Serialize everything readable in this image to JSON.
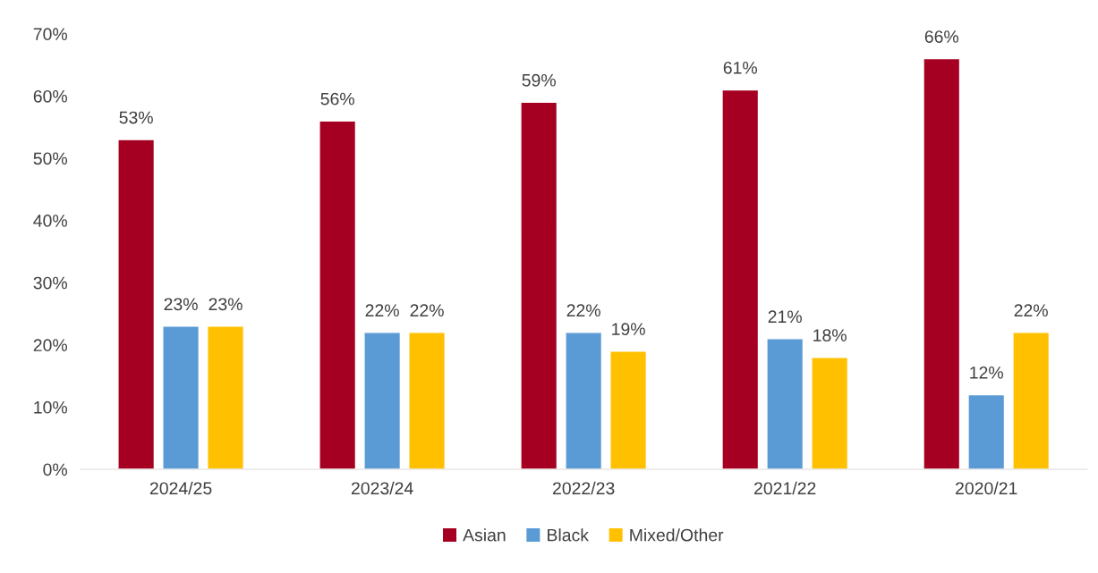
{
  "chart_data": {
    "type": "bar",
    "categories": [
      "2024/25",
      "2023/24",
      "2022/23",
      "2021/22",
      "2020/21"
    ],
    "series": [
      {
        "name": "Asian",
        "color": "#a50021",
        "values": [
          53,
          56,
          59,
          61,
          66
        ],
        "value_labels": [
          "53%",
          "56%",
          "59%",
          "61%",
          "66%"
        ]
      },
      {
        "name": "Black",
        "color": "#5b9bd5",
        "values": [
          23,
          22,
          22,
          21,
          12
        ],
        "value_labels": [
          "23%",
          "22%",
          "22%",
          "21%",
          "12%"
        ]
      },
      {
        "name": "Mixed/Other",
        "color": "#ffc000",
        "values": [
          23,
          22,
          19,
          18,
          22
        ],
        "value_labels": [
          "23%",
          "22%",
          "19%",
          "18%",
          "22%"
        ]
      }
    ],
    "ylim": [
      0,
      70
    ],
    "yticks": [
      {
        "value": 0,
        "label": "0%"
      },
      {
        "value": 10,
        "label": "10%"
      },
      {
        "value": 20,
        "label": "20%"
      },
      {
        "value": 30,
        "label": "30%"
      },
      {
        "value": 40,
        "label": "40%"
      },
      {
        "value": 50,
        "label": "50%"
      },
      {
        "value": 60,
        "label": "60%"
      },
      {
        "value": 70,
        "label": "70%"
      }
    ],
    "grid": false,
    "legend": "bottom"
  }
}
